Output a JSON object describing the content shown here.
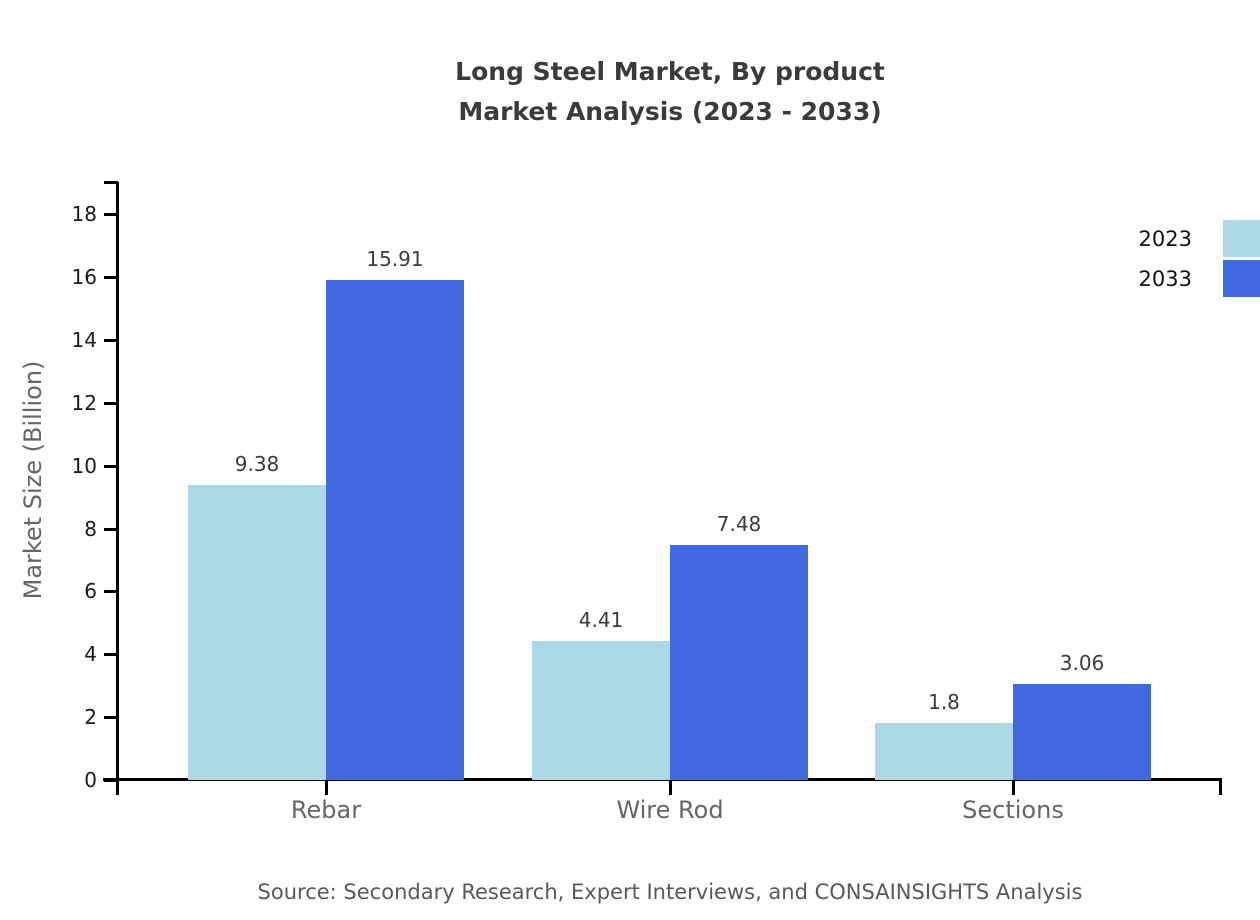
{
  "title": {
    "line1": "Long Steel Market, By product",
    "line2": "Market Analysis (2023 - 2033)"
  },
  "source": "Source: Secondary Research, Expert Interviews, and CONSAINSIGHTS Analysis",
  "chart_data": {
    "type": "bar",
    "title": "Long Steel Market, By product — Market Analysis (2023 - 2033)",
    "categories": [
      "Rebar",
      "Wire Rod",
      "Sections"
    ],
    "series": [
      {
        "name": "2023",
        "color": "#ADD8E6",
        "values": [
          9.38,
          4.41,
          1.8
        ]
      },
      {
        "name": "2033",
        "color": "#4169E1",
        "values": [
          15.91,
          7.48,
          3.06
        ]
      }
    ],
    "xlabel": "",
    "ylabel": "Market Size (Billion)",
    "ylim": [
      0,
      19
    ],
    "yticks": [
      0,
      2,
      4,
      6,
      8,
      10,
      12,
      14,
      16,
      18
    ],
    "grid": false,
    "legend_position": "upper right",
    "bar_value_labels": true
  },
  "colors": {
    "series_2023": "#ADD8E6",
    "series_2033": "#4169E1",
    "axis": "#000000",
    "title_text": "#3B3B3B",
    "tick_label_text": "#1A1A1A",
    "category_label_text": "#666666",
    "value_label_text": "#3C3C3C",
    "source_text": "#595959"
  }
}
